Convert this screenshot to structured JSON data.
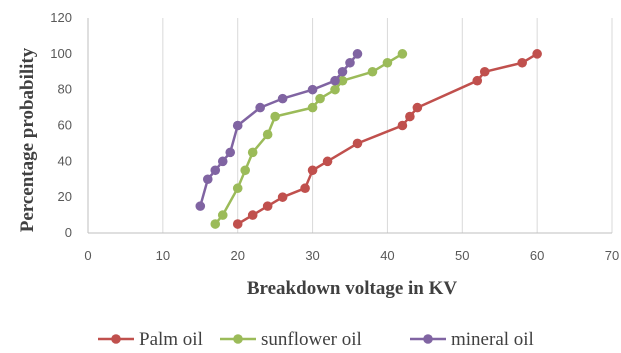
{
  "chart_data": {
    "type": "line",
    "title": "",
    "xlabel": "Breakdown voltage in KV",
    "ylabel": "Percentage probability",
    "xlim": [
      0,
      70
    ],
    "ylim": [
      0,
      120
    ],
    "xticks": [
      0,
      10,
      20,
      30,
      40,
      50,
      60,
      70
    ],
    "yticks": [
      0,
      20,
      40,
      60,
      80,
      100,
      120
    ],
    "xtick_labels": [
      "0",
      "10",
      "20",
      "30",
      "40",
      "50",
      "60",
      "70"
    ],
    "ytick_labels": [
      "0",
      "20",
      "40",
      "60",
      "80",
      "100",
      "120"
    ],
    "grid": "vertical",
    "legend_position": "bottom",
    "series": [
      {
        "name": "Palm oil",
        "color": "#c0504d",
        "x": [
          20,
          22,
          24,
          26,
          29,
          30,
          32,
          36,
          42,
          43,
          44,
          52,
          53,
          58,
          60
        ],
        "y": [
          5,
          10,
          15,
          20,
          25,
          35,
          40,
          50,
          60,
          65,
          70,
          85,
          90,
          95,
          100
        ]
      },
      {
        "name": "sunflower oil",
        "color": "#9bbb59",
        "x": [
          17,
          18,
          20,
          21,
          22,
          24,
          25,
          30,
          31,
          33,
          34,
          38,
          40,
          42
        ],
        "y": [
          5,
          10,
          25,
          35,
          45,
          55,
          65,
          70,
          75,
          80,
          85,
          90,
          95,
          100
        ]
      },
      {
        "name": "mineral oil",
        "color": "#8064a2",
        "x": [
          15,
          16,
          17,
          18,
          19,
          20,
          23,
          26,
          30,
          33,
          34,
          35,
          36
        ],
        "y": [
          15,
          30,
          35,
          40,
          45,
          60,
          70,
          75,
          80,
          85,
          90,
          95,
          100
        ]
      }
    ]
  }
}
